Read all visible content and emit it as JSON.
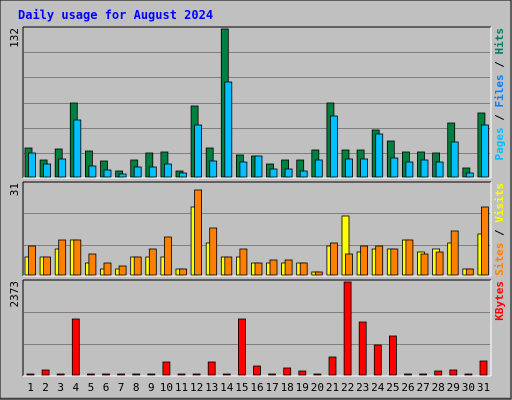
{
  "chart_data": {
    "type": "bar",
    "title": "Daily usage for August 2024",
    "days": [
      "1",
      "2",
      "3",
      "4",
      "5",
      "6",
      "7",
      "8",
      "9",
      "10",
      "11",
      "12",
      "13",
      "14",
      "15",
      "16",
      "17",
      "18",
      "19",
      "20",
      "21",
      "22",
      "23",
      "24",
      "25",
      "26",
      "27",
      "28",
      "29",
      "30",
      "31"
    ],
    "weekend_days": [
      "3",
      "4",
      "10",
      "11",
      "17",
      "18",
      "24",
      "25",
      "31"
    ],
    "panels": [
      {
        "name": "hits-files-pages",
        "ymax_label": "132",
        "ymax": 132,
        "series": [
          {
            "name": "Hits",
            "color": "#008040",
            "values": [
              26,
              15,
              25,
              66,
              23,
              14,
              5,
              15,
              21,
              22,
              5,
              63,
              26,
              132,
              20,
              19,
              12,
              15,
              15,
              24,
              66,
              24,
              24,
              42,
              32,
              22,
              22,
              21,
              48,
              8,
              57
            ]
          },
          {
            "name": "Files",
            "color": "#00C0FF",
            "values": [
              21,
              12,
              16,
              51,
              10,
              6,
              3,
              9,
              9,
              12,
              4,
              46,
              14,
              85,
              13,
              19,
              7,
              7,
              5,
              15,
              54,
              16,
              16,
              38,
              17,
              13,
              15,
              13,
              31,
              4,
              46
            ]
          },
          {
            "name": "Pages",
            "color": "#00C0FF",
            "values": [
              0,
              0,
              0,
              0,
              0,
              0,
              0,
              0,
              0,
              0,
              0,
              0,
              0,
              0,
              0,
              0,
              0,
              0,
              0,
              0,
              0,
              0,
              0,
              0,
              0,
              0,
              0,
              0,
              0,
              0,
              0
            ]
          }
        ],
        "labels": [
          {
            "text": "Pages",
            "color": "#00C0FF"
          },
          {
            "text": " / ",
            "color": "#000000"
          },
          {
            "text": "Files",
            "color": "#0080FF"
          },
          {
            "text": " / ",
            "color": "#000000"
          },
          {
            "text": "Hits",
            "color": "#00805F"
          }
        ]
      },
      {
        "name": "visits-sites",
        "ymax_label": "31",
        "ymax": 31,
        "series": [
          {
            "name": "Visits",
            "color": "#FFFF00",
            "values": [
              6,
              6,
              9,
              12,
              4,
              2,
              2,
              6,
              6,
              6,
              2,
              23,
              11,
              6,
              6,
              4,
              4,
              4,
              4,
              1,
              10,
              20,
              8,
              9,
              9,
              12,
              8,
              9,
              11,
              2,
              14
            ]
          },
          {
            "name": "Sites",
            "color": "#FF8000",
            "values": [
              10,
              6,
              12,
              12,
              7,
              4,
              3,
              6,
              9,
              13,
              2,
              29,
              16,
              6,
              9,
              4,
              5,
              5,
              4,
              1,
              11,
              7,
              10,
              10,
              9,
              12,
              7,
              8,
              15,
              2,
              23
            ]
          }
        ],
        "labels": [
          {
            "text": "Sites",
            "color": "#FF8000"
          },
          {
            "text": " / ",
            "color": "#000000"
          },
          {
            "text": "Visits",
            "color": "#FFFF00"
          }
        ]
      },
      {
        "name": "kbytes",
        "ymax_label": "2373",
        "ymax": 2373,
        "series": [
          {
            "name": "KBytes",
            "color": "#FF0000",
            "values": [
              30,
              130,
              30,
              1420,
              30,
              30,
              30,
              30,
              30,
              320,
              30,
              30,
              340,
              30,
              1420,
              230,
              30,
              170,
              110,
              30,
              470,
              2373,
              1350,
              760,
              990,
              30,
              30,
              110,
              140,
              30,
              350
            ]
          }
        ],
        "labels": [
          {
            "text": "KBytes",
            "color": "#FF0000"
          }
        ]
      }
    ]
  },
  "colors": {
    "background": "#C0C0C0",
    "grid": "#808080",
    "weekday_label": "#000000",
    "weekend_label": "#00805F"
  }
}
